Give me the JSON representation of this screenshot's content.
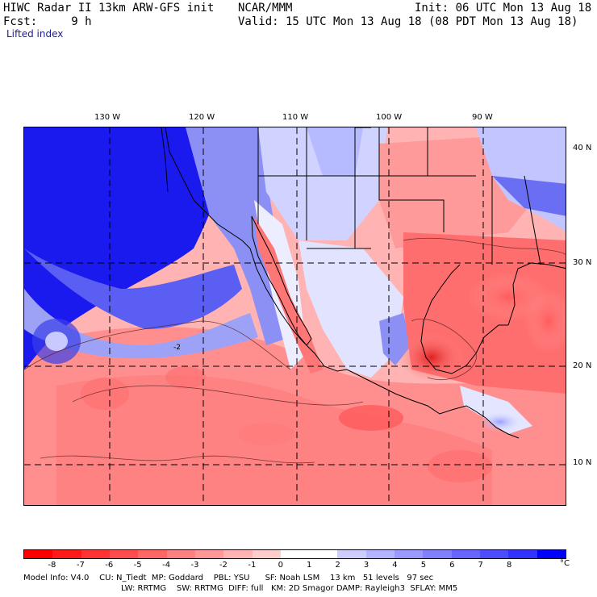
{
  "header": {
    "line1_left": "HIWC Radar II 13km ARW-GFS init",
    "line1_mid": "NCAR/MMM",
    "line1_right": "Init: 06 UTC Mon 13 Aug 18",
    "line2_left": "Fcst:     9 h",
    "line2_right": "Valid: 15 UTC Mon 13 Aug 18 (08 PDT Mon 13 Aug 18)",
    "field": "Lifted index"
  },
  "map": {
    "lon_labels": [
      "130 W",
      "120 W",
      "110 W",
      "100 W",
      "90 W"
    ],
    "lat_labels": [
      "40 N",
      "30 N",
      "20 N",
      "10 N"
    ]
  },
  "colorbar": {
    "ticks": [
      "-8",
      "-7",
      "-6",
      "-5",
      "-4",
      "-3",
      "-2",
      "-1",
      "0",
      "1",
      "2",
      "3",
      "4",
      "5",
      "6",
      "7",
      "8"
    ],
    "unit": "°C",
    "colors": [
      "#ff0000",
      "#ff1a1a",
      "#ff3333",
      "#ff4d4d",
      "#ff6666",
      "#ff8080",
      "#ff9999",
      "#ffb3b3",
      "#ffcccc",
      "#ffffff",
      "#ffffff",
      "#ccccff",
      "#b3b3ff",
      "#9999ff",
      "#8080ff",
      "#6666ff",
      "#4d4dff",
      "#3333ff",
      "#0000ff"
    ]
  },
  "footer": {
    "line1": "Model Info: V4.0    CU: N_Tiedt  MP: Goddard    PBL: YSU      SF: Noah LSM    13 km   51 levels   97 sec",
    "line2": "LW: RRTMG    SW: RRTMG  DIFF: full   KM: 2D Smagor DAMP: Rayleigh3  SFLAY: MM5"
  }
}
